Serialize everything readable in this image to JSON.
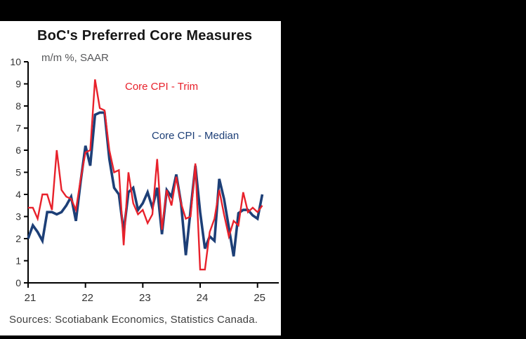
{
  "window": {
    "background_color": "#000000"
  },
  "chart": {
    "title": "BoC's Preferred Core Measures",
    "subtitle": "m/m %, SAAR",
    "source": "Sources: Scotiabank Economics, Statistics Canada.",
    "legend": {
      "trim_label": "Core CPI - Trim",
      "median_label": "Core CPI - Median"
    },
    "colors": {
      "trim": "#e8212b",
      "median": "#1d3f77",
      "axis": "#000000",
      "tick_text": "#333333",
      "title_text": "#161616",
      "subtitle_text": "#57585a"
    }
  },
  "chart_data": {
    "type": "line",
    "title": "BoC's Preferred Core Measures",
    "subtitle_unit_label": "m/m %, SAAR",
    "xlabel": "",
    "ylabel": "m/m %, SAAR",
    "ylim": [
      0,
      10
    ],
    "ytick_step": 1,
    "grid": false,
    "legend_position": "inline-annotations",
    "x": [
      "Jan-21",
      "Feb-21",
      "Mar-21",
      "Apr-21",
      "May-21",
      "Jun-21",
      "Jul-21",
      "Aug-21",
      "Sep-21",
      "Oct-21",
      "Nov-21",
      "Dec-21",
      "Jan-22",
      "Feb-22",
      "Mar-22",
      "Apr-22",
      "May-22",
      "Jun-22",
      "Jul-22",
      "Aug-22",
      "Sep-22",
      "Oct-22",
      "Nov-22",
      "Dec-22",
      "Jan-23",
      "Feb-23",
      "Mar-23",
      "Apr-23",
      "May-23",
      "Jun-23",
      "Jul-23",
      "Aug-23",
      "Sep-23",
      "Oct-23",
      "Nov-23",
      "Dec-23",
      "Jan-24",
      "Feb-24",
      "Mar-24",
      "Apr-24",
      "May-24",
      "Jun-24",
      "Jul-24",
      "Aug-24",
      "Sep-24",
      "Oct-24",
      "Nov-24",
      "Dec-24",
      "Jan-25",
      "Feb-25"
    ],
    "xticks": [
      {
        "label": "21",
        "month_index": 0
      },
      {
        "label": "22",
        "month_index": 12
      },
      {
        "label": "23",
        "month_index": 24
      },
      {
        "label": "24",
        "month_index": 36
      },
      {
        "label": "25",
        "month_index": 48
      }
    ],
    "yticks": [
      "0",
      "1",
      "2",
      "3",
      "4",
      "5",
      "6",
      "7",
      "8",
      "9",
      "10"
    ],
    "series": [
      {
        "name": "Core CPI - Median",
        "color": "#1d3f77",
        "values": [
          2.0,
          2.6,
          2.3,
          1.9,
          3.2,
          3.2,
          3.1,
          3.2,
          3.5,
          3.9,
          2.8,
          4.6,
          6.2,
          5.3,
          7.6,
          7.7,
          7.7,
          5.6,
          4.3,
          4.0,
          2.3,
          4.1,
          4.3,
          3.3,
          3.6,
          4.1,
          3.4,
          4.3,
          2.2,
          4.2,
          3.9,
          4.9,
          3.6,
          1.25,
          3.3,
          5.3,
          3.2,
          1.55,
          2.1,
          1.9,
          4.7,
          3.8,
          2.5,
          1.2,
          3.15,
          3.3,
          3.3,
          3.05,
          2.9,
          4.0
        ]
      },
      {
        "name": "Core CPI - Trim",
        "color": "#e8212b",
        "values": [
          3.4,
          3.4,
          2.9,
          4.0,
          4.0,
          3.3,
          6.0,
          4.2,
          3.9,
          3.8,
          3.3,
          4.7,
          5.9,
          6.0,
          9.2,
          7.9,
          7.8,
          6.0,
          5.0,
          5.1,
          1.7,
          5.0,
          3.6,
          3.1,
          3.3,
          2.7,
          3.1,
          5.6,
          2.4,
          4.2,
          3.5,
          4.8,
          3.6,
          2.9,
          3.0,
          5.4,
          0.6,
          0.6,
          2.3,
          2.9,
          4.2,
          3.1,
          2.1,
          2.8,
          2.6,
          4.1,
          3.2,
          3.4,
          3.2,
          3.5
        ]
      }
    ]
  }
}
